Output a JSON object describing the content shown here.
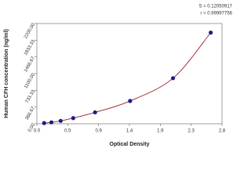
{
  "chart_data": {
    "type": "scatter",
    "annotations": [
      "S = 0.12050917",
      "r = 0.99997756"
    ],
    "x_label": "Optical Density",
    "y_label": "Human CFH concentration (ng/ml)",
    "x": [
      0.11,
      0.22,
      0.36,
      0.55,
      0.88,
      1.41,
      2.06,
      2.63
    ],
    "values": [
      15,
      31,
      63,
      125,
      250,
      500,
      1000,
      2000
    ],
    "color": "#1c1c8a",
    "curve_color": "#9b2226",
    "xlim": [
      0,
      2.8
    ],
    "xticks": [
      {
        "value": 0,
        "label": "0.0"
      },
      {
        "value": 0.4667,
        "label": "0.5"
      },
      {
        "value": 0.9333,
        "label": "0.9"
      },
      {
        "value": 1.4,
        "label": "1.4"
      },
      {
        "value": 1.8667,
        "label": "1.9"
      },
      {
        "value": 2.3333,
        "label": "2.3"
      },
      {
        "value": 2.8,
        "label": "2.8"
      }
    ],
    "ylim": [
      0,
      2200
    ],
    "yticks": [
      {
        "value": 0,
        "label": "0.00"
      },
      {
        "value": 366.67,
        "label": "366.67"
      },
      {
        "value": 733.33,
        "label": "733.33"
      },
      {
        "value": 1100,
        "label": "1100.00"
      },
      {
        "value": 1466.67,
        "label": "1466.67"
      },
      {
        "value": 1833.33,
        "label": "1833.33"
      },
      {
        "value": 2200,
        "label": "2200.00"
      }
    ]
  }
}
